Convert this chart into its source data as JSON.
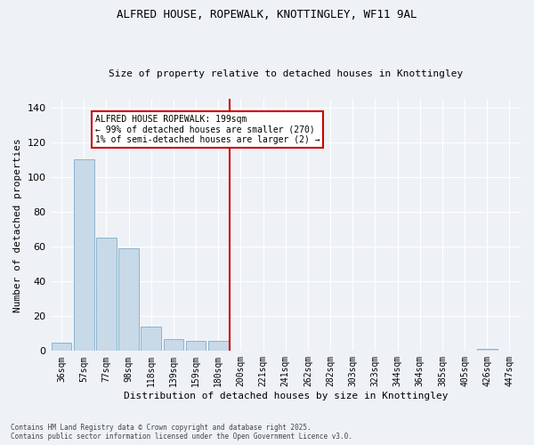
{
  "title": "ALFRED HOUSE, ROPEWALK, KNOTTINGLEY, WF11 9AL",
  "subtitle": "Size of property relative to detached houses in Knottingley",
  "xlabel": "Distribution of detached houses by size in Knottingley",
  "ylabel": "Number of detached properties",
  "bar_labels": [
    "36sqm",
    "57sqm",
    "77sqm",
    "98sqm",
    "118sqm",
    "139sqm",
    "159sqm",
    "180sqm",
    "200sqm",
    "221sqm",
    "241sqm",
    "262sqm",
    "282sqm",
    "303sqm",
    "323sqm",
    "344sqm",
    "364sqm",
    "385sqm",
    "405sqm",
    "426sqm",
    "447sqm"
  ],
  "bar_values": [
    5,
    110,
    65,
    59,
    14,
    7,
    6,
    6,
    0,
    0,
    0,
    0,
    0,
    0,
    0,
    0,
    0,
    0,
    0,
    1,
    0
  ],
  "bar_color": "#c8d9e8",
  "bar_edge_color": "#8ab4d0",
  "vline_index": 8,
  "vline_color": "#cc0000",
  "annotation_text": "ALFRED HOUSE ROPEWALK: 199sqm\n← 99% of detached houses are smaller (270)\n1% of semi-detached houses are larger (2) →",
  "annotation_box_color": "#ffffff",
  "annotation_box_edge": "#cc0000",
  "bg_color": "#eef2f7",
  "grid_color": "#ffffff",
  "footer_text": "Contains HM Land Registry data © Crown copyright and database right 2025.\nContains public sector information licensed under the Open Government Licence v3.0.",
  "ylim": [
    0,
    145
  ],
  "yticks": [
    0,
    20,
    40,
    60,
    80,
    100,
    120,
    140
  ],
  "title_fontsize": 9,
  "subtitle_fontsize": 8,
  "tick_fontsize": 7,
  "ylabel_fontsize": 8,
  "xlabel_fontsize": 8,
  "annot_fontsize": 7,
  "footer_fontsize": 5.5
}
